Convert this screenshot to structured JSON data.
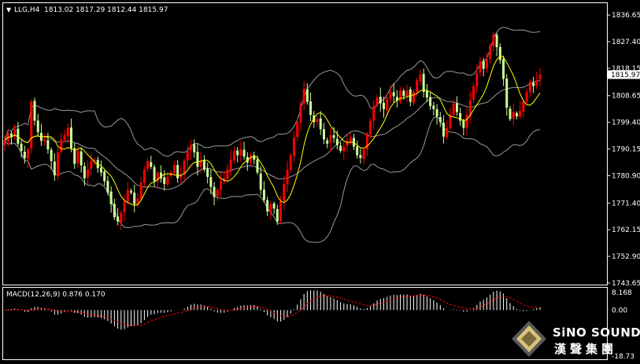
{
  "header": {
    "symbol_label": "LLG,H4",
    "ohlc_label": "1813.02 1817.29 1812.44 1815.97"
  },
  "current_price_label": "1815.97",
  "macd_header": "MACD(12,26,9) 0.876 0.170",
  "logo": {
    "en": "SiNO SOUND",
    "cn": "漢聲集團"
  },
  "colors": {
    "background": "#000000",
    "bull": "#ff0000",
    "bear": "#ccff99",
    "ma": "#ffff00",
    "bands": "#999999",
    "macd_hist": "#ffffff",
    "macd_signal": "#ff0000",
    "axis": "#ffffff"
  },
  "chart_data": {
    "type": "candlestick",
    "price_axis": {
      "ticks": [
        "1836.65",
        "1827.40",
        "1818.15",
        "1808.65",
        "1799.40",
        "1790.15",
        "1780.90",
        "1771.40",
        "1762.15",
        "1752.90",
        "1743.65"
      ],
      "ylim": [
        1743.65,
        1840.5
      ]
    },
    "macd_axis": {
      "ticks": [
        "8.168",
        "0.00",
        "-18.73"
      ],
      "ylim": [
        -18.73,
        8.168
      ]
    },
    "series": [
      {
        "kind": "ohlc",
        "close": [
          1793.0,
          1795.5,
          1794.5,
          1797.0,
          1792.0,
          1789.5,
          1787.0,
          1790.0,
          1806.5,
          1800.0,
          1796.0,
          1793.0,
          1793.5,
          1790.0,
          1786.0,
          1781.0,
          1789.0,
          1793.5,
          1795.0,
          1797.5,
          1790.5,
          1785.0,
          1789.5,
          1784.5,
          1780.0,
          1783.0,
          1786.0,
          1786.5,
          1783.5,
          1782.0,
          1779.0,
          1775.0,
          1771.0,
          1766.5,
          1765.0,
          1768.0,
          1772.0,
          1776.0,
          1775.0,
          1771.0,
          1773.0,
          1778.5,
          1783.0,
          1786.0,
          1784.0,
          1779.0,
          1782.0,
          1780.0,
          1778.0,
          1780.5,
          1782.0,
          1784.5,
          1780.0,
          1781.5,
          1786.0,
          1789.5,
          1791.5,
          1789.0,
          1784.0,
          1786.0,
          1783.0,
          1780.5,
          1777.0,
          1773.5,
          1776.0,
          1779.0,
          1780.0,
          1783.0,
          1786.5,
          1789.5,
          1788.0,
          1790.0,
          1787.5,
          1785.5,
          1788.0,
          1786.5,
          1782.0,
          1776.0,
          1772.5,
          1768.5,
          1771.0,
          1769.5,
          1765.0,
          1772.0,
          1778.0,
          1783.0,
          1788.0,
          1794.0,
          1799.5,
          1806.0,
          1811.0,
          1806.5,
          1802.0,
          1799.5,
          1800.5,
          1797.0,
          1793.5,
          1792.0,
          1795.0,
          1794.0,
          1791.5,
          1789.5,
          1791.0,
          1793.0,
          1794.0,
          1791.0,
          1788.0,
          1787.0,
          1790.0,
          1795.5,
          1800.0,
          1805.0,
          1808.0,
          1806.0,
          1804.0,
          1808.0,
          1810.0,
          1808.5,
          1807.0,
          1810.5,
          1808.5,
          1810.5,
          1806.5,
          1810.0,
          1814.0,
          1816.0,
          1810.0,
          1808.0,
          1805.0,
          1804.0,
          1801.5,
          1799.5,
          1794.5,
          1797.5,
          1802.0,
          1806.0,
          1803.0,
          1800.0,
          1797.5,
          1802.0,
          1807.0,
          1812.0,
          1816.5,
          1820.5,
          1818.0,
          1821.5,
          1826.0,
          1830.0,
          1825.5,
          1821.0,
          1814.5,
          1804.5,
          1800.5,
          1803.0,
          1801.5,
          1803.5,
          1806.5,
          1810.0,
          1813.5,
          1812.0,
          1814.0,
          1815.97
        ]
      },
      {
        "kind": "ma",
        "period": 8
      },
      {
        "kind": "bollinger",
        "period": 20,
        "k": 2
      },
      {
        "kind": "macd",
        "fast": 12,
        "slow": 26,
        "signal": 9
      }
    ]
  }
}
